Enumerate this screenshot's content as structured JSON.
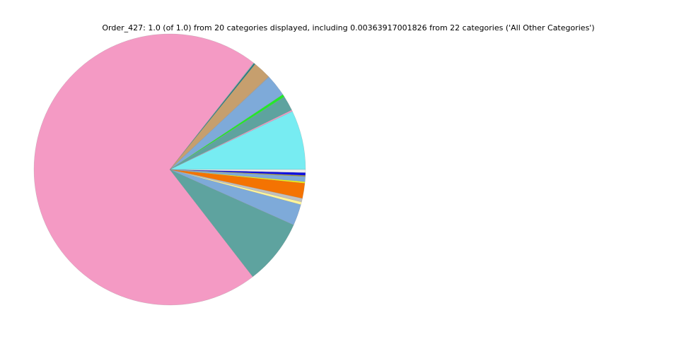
{
  "chart_data": {
    "type": "pie",
    "title": "Order_427: 1.0 (of 1.0) from 20 categories displayed, including 0.00363917001826 from 22 categories ('All Other Categories')",
    "start_angle_deg": 0,
    "direction": "counterclockwise",
    "values": [
      0.0706,
      0.0017,
      0.0178,
      0.0033,
      0.0261,
      0.0008,
      0.0214,
      0.0019,
      0.0008,
      0.7103,
      0.0783,
      0.0253,
      0.0033,
      0.0042,
      0.0181,
      0.0017,
      0.0061,
      0.0014,
      0.0033,
      0.0036
    ],
    "colors": [
      "#77ecf2",
      "#f09ac5",
      "#5ea39f",
      "#22e82a",
      "#7eaad9",
      "#a0a0a0",
      "#c69f6e",
      "#2b7a80",
      "#bdbdbd",
      "#f49ac4",
      "#5ea39f",
      "#7eaad9",
      "#fff59a",
      "#c0c0c0",
      "#f47302",
      "#f5f50a",
      "#7eaad9",
      "#a09a3a",
      "#1010e0",
      "#ececec"
    ]
  }
}
